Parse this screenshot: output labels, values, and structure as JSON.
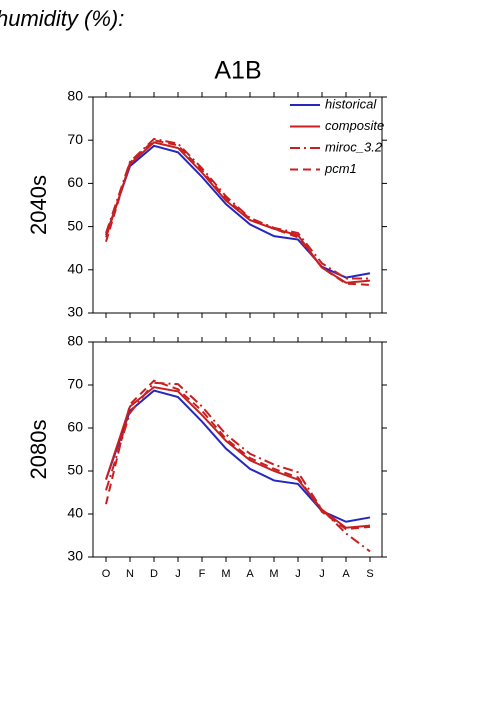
{
  "header": {
    "title": "humidity (%):",
    "scenario": "A1B"
  },
  "chart_data": [
    {
      "type": "line",
      "ylabel": "2040s",
      "ylim": [
        30,
        80
      ],
      "yticks": [
        30,
        40,
        50,
        60,
        70,
        80
      ],
      "legend": "upper right",
      "series": [
        {
          "name": "historical",
          "color": "#2626c0",
          "dash": "solid",
          "values": [
            48,
            64,
            68.7,
            67.2,
            61.5,
            55.2,
            50.5,
            47.8,
            47,
            40.7,
            38.2,
            39.2
          ]
        },
        {
          "name": "composite",
          "color": "#c82020",
          "dash": "solid",
          "values": [
            47.5,
            64.5,
            69.5,
            68.2,
            62.5,
            56,
            51.5,
            49.5,
            48,
            40.5,
            37,
            37.5
          ]
        },
        {
          "name": "miroc_3.2",
          "color": "#c82020",
          "dash": "dashdot",
          "values": [
            48.5,
            65,
            70.3,
            69.2,
            63.5,
            57,
            52,
            49.7,
            48.5,
            41.5,
            38,
            38
          ]
        },
        {
          "name": "pcm1",
          "color": "#c82020",
          "dash": "dashed",
          "values": [
            46.5,
            64.8,
            70,
            68.8,
            63,
            56.5,
            51.8,
            49.5,
            47.5,
            40.5,
            36.8,
            36.5
          ]
        }
      ]
    },
    {
      "type": "line",
      "ylabel": "2080s",
      "ylim": [
        30,
        80
      ],
      "yticks": [
        30,
        40,
        50,
        60,
        70,
        80
      ],
      "categories": [
        "O",
        "N",
        "D",
        "J",
        "F",
        "M",
        "A",
        "M",
        "J",
        "J",
        "A",
        "S"
      ],
      "series": [
        {
          "color": "#2626c0",
          "dash": "solid",
          "values": [
            48,
            64,
            68.7,
            67.2,
            61.5,
            55.2,
            50.5,
            47.8,
            47,
            40.7,
            38.2,
            39.2
          ]
        },
        {
          "color": "#c82020",
          "dash": "solid",
          "values": [
            48,
            65,
            69.5,
            68.5,
            63,
            57,
            52.5,
            50,
            48,
            41,
            36.8,
            37.3
          ]
        },
        {
          "color": "#c82020",
          "dash": "dashdot",
          "values": [
            45.5,
            63.5,
            70.5,
            70.2,
            65,
            58.5,
            54,
            51.5,
            49.7,
            41,
            35.5,
            31.3
          ]
        },
        {
          "color": "#c82020",
          "dash": "dashed",
          "values": [
            42.3,
            65.5,
            71,
            69,
            64,
            57.5,
            53,
            50.5,
            48.5,
            40.5,
            36.5,
            37
          ]
        }
      ]
    }
  ]
}
